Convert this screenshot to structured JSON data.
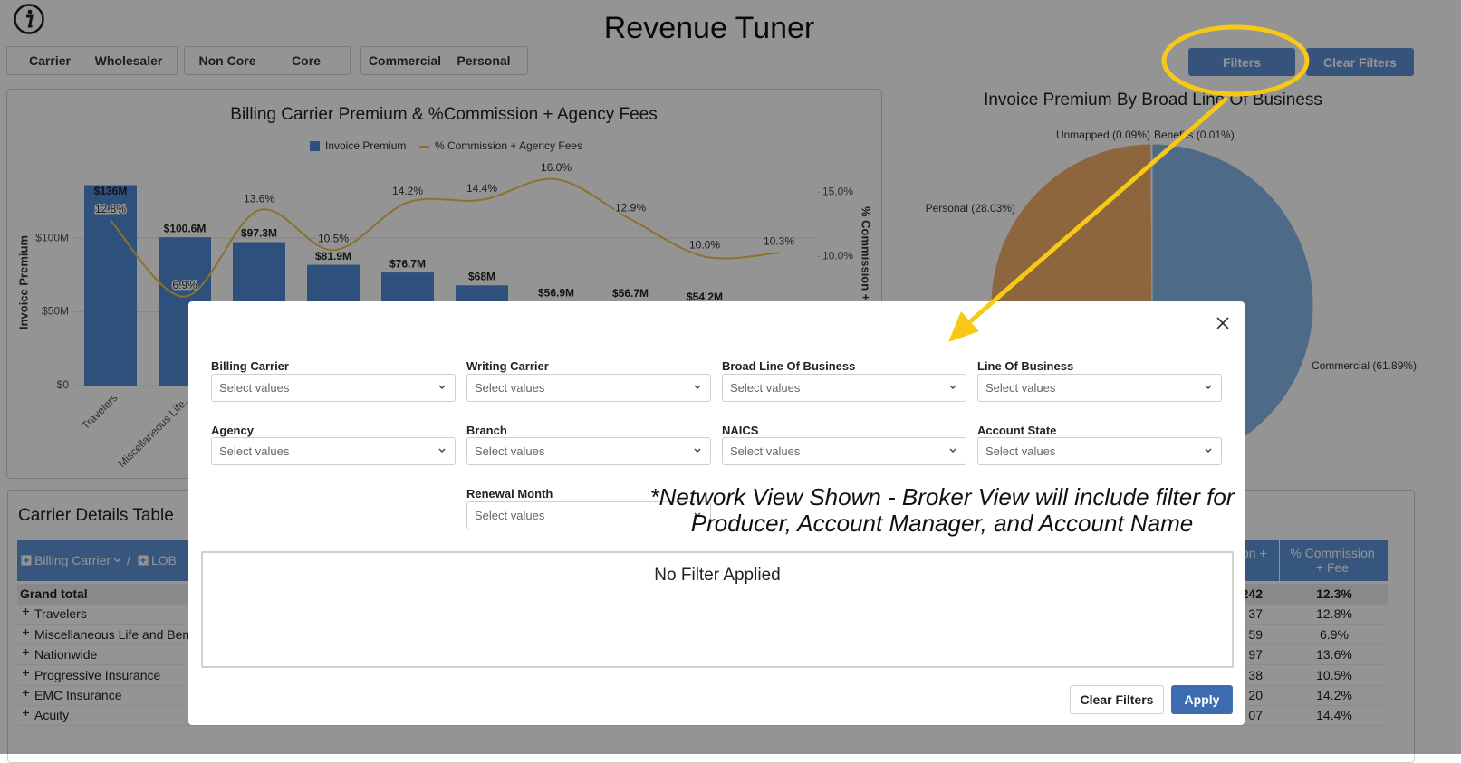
{
  "header": {
    "title": "Revenue Tuner",
    "toggles": [
      [
        "Carrier",
        "Wholesaler"
      ],
      [
        "Non Core",
        "Core"
      ],
      [
        "Commercial",
        "Personal"
      ]
    ],
    "buttons": {
      "filters": "Filters",
      "clear_filters": "Clear Filters"
    }
  },
  "chart_data": [
    {
      "type": "bar",
      "title": "Billing Carrier Premium & %Commission + Agency Fees",
      "categories": [
        "Travelers",
        "Miscellaneous Life...",
        null,
        null,
        null,
        null,
        null,
        null,
        null,
        null
      ],
      "series": [
        {
          "name": "Invoice Premium",
          "color": "#4f8ad6",
          "values": [
            136,
            100.6,
            97.3,
            81.9,
            76.7,
            68,
            56.9,
            56.7,
            54.2,
            null
          ],
          "value_labels": [
            "$136M",
            "$100.6M",
            "$97.3M",
            "$81.9M",
            "$76.7M",
            "$68M",
            "$56.9M",
            "$56.7M",
            "$54.2M",
            null
          ]
        },
        {
          "name": "% Commission + Agency Fees",
          "type": "line",
          "axis": "y2",
          "color": "#f0c44a",
          "values": [
            12.8,
            6.9,
            13.6,
            10.5,
            14.2,
            14.4,
            16.0,
            12.9,
            10.0,
            10.3
          ],
          "value_labels": [
            "12.8%",
            "6.9%",
            "13.6%",
            "10.5%",
            "14.2%",
            "14.4%",
            "16.0%",
            "12.9%",
            "10.0%",
            "10.3%"
          ]
        }
      ],
      "ylabel": "Invoice Premium",
      "y2label": "% Commission + A",
      "ylim": [
        0,
        140
      ],
      "yticks": [
        {
          "value": 0,
          "label": "$0"
        },
        {
          "value": 50,
          "label": "$50M"
        },
        {
          "value": 100,
          "label": "$100M"
        }
      ],
      "y2lim": [
        0,
        16
      ],
      "y2ticks": [
        {
          "value": 10,
          "label": "10.0%"
        },
        {
          "value": 15,
          "label": "15.0%"
        }
      ],
      "grid": true
    },
    {
      "type": "pie",
      "title": "Invoice Premium By Broad Line Of Business",
      "values": [
        61.89,
        28.03,
        0.09,
        0.01
      ],
      "value_labels": [
        "Commercial (61.89%)",
        "Personal (28.03%)",
        "Unmapped (0.09%)",
        "Benefits (0.01%)"
      ],
      "colors": [
        "#85b8e8",
        "#f5b06a",
        "#e6c9a8",
        "#d9d9d9"
      ]
    }
  ],
  "table": {
    "title": "Carrier Details Table",
    "columns": [
      "Billing Carrier",
      "/",
      "LOB",
      "on +",
      "% Commission + Fee"
    ],
    "rows": [
      [
        "Grand total",
        "242",
        "12.3%"
      ],
      [
        "Travelers",
        "37",
        "12.8%"
      ],
      [
        "Miscellaneous Life and Bene",
        "59",
        "6.9%"
      ],
      [
        "Nationwide",
        "97",
        "13.6%"
      ],
      [
        "Progressive Insurance",
        "38",
        "10.5%"
      ],
      [
        "EMC Insurance",
        "20",
        "14.2%"
      ],
      [
        "Acuity",
        "07",
        "14.4%"
      ]
    ]
  },
  "modal": {
    "fields": [
      {
        "label": "Billing Carrier",
        "placeholder": "Select values"
      },
      {
        "label": "Writing Carrier",
        "placeholder": "Select values"
      },
      {
        "label": "Broad Line Of Business",
        "placeholder": "Select values"
      },
      {
        "label": "Line Of Business",
        "placeholder": "Select values"
      },
      {
        "label": "Agency",
        "placeholder": "Select values"
      },
      {
        "label": "Branch",
        "placeholder": "Select values"
      },
      {
        "label": "NAICS",
        "placeholder": "Select values"
      },
      {
        "label": "Account State",
        "placeholder": "Select values"
      },
      {
        "label": "Renewal Month",
        "placeholder": "Select values"
      }
    ],
    "note": [
      "*Network View Shown - Broker View will include filter for",
      "Producer, Account Manager, and Account Name"
    ],
    "status": "No Filter Applied",
    "buttons": {
      "clear": "Clear Filters",
      "apply": "Apply"
    }
  }
}
